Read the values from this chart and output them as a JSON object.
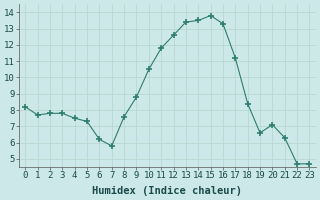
{
  "x": [
    0,
    1,
    2,
    3,
    4,
    5,
    6,
    7,
    8,
    9,
    10,
    11,
    12,
    13,
    14,
    15,
    16,
    17,
    18,
    19,
    20,
    21,
    22,
    23
  ],
  "y": [
    8.2,
    7.7,
    7.8,
    7.8,
    7.5,
    7.3,
    6.2,
    5.8,
    7.6,
    8.8,
    10.5,
    11.8,
    12.6,
    13.4,
    13.5,
    13.8,
    13.3,
    11.2,
    8.4,
    6.6,
    7.1,
    6.3,
    4.7,
    4.7
  ],
  "line_color": "#2e7d6e",
  "marker": "+",
  "marker_size": 5,
  "bg_color": "#cde8e8",
  "grid_color": "#b8d8d0",
  "xlabel": "Humidex (Indice chaleur)",
  "xlim": [
    -0.5,
    23.5
  ],
  "ylim": [
    4.5,
    14.5
  ],
  "yticks": [
    5,
    6,
    7,
    8,
    9,
    10,
    11,
    12,
    13,
    14
  ],
  "xticks": [
    0,
    1,
    2,
    3,
    4,
    5,
    6,
    7,
    8,
    9,
    10,
    11,
    12,
    13,
    14,
    15,
    16,
    17,
    18,
    19,
    20,
    21,
    22,
    23
  ],
  "label_fontsize": 7.5,
  "tick_fontsize": 6.5
}
